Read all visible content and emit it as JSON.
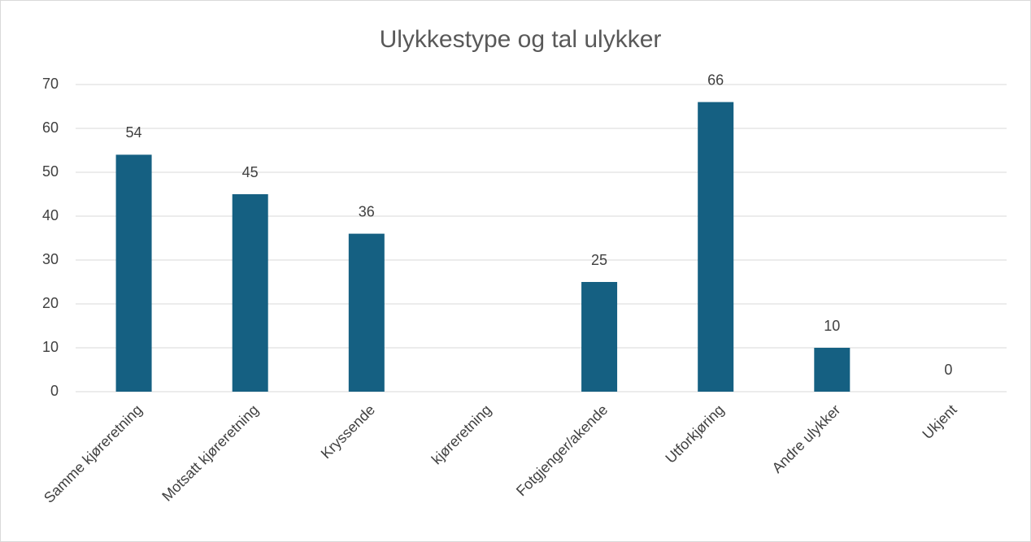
{
  "chart_data": {
    "type": "bar",
    "title": "Ulykkestype og tal ulykker",
    "categories": [
      "Samme kjøreretning",
      "Motsatt kjøreretning",
      "Kryssende",
      "kjøreretning",
      "Fotgjenger/akende",
      "Utforkjøring",
      "Andre ulykker",
      "Ukjent"
    ],
    "values": [
      54,
      45,
      36,
      null,
      25,
      66,
      10,
      0
    ],
    "color": "#156082",
    "ylim": [
      0,
      70
    ],
    "yticks": [
      0,
      10,
      20,
      30,
      40,
      50,
      60,
      70
    ],
    "grid": true
  }
}
